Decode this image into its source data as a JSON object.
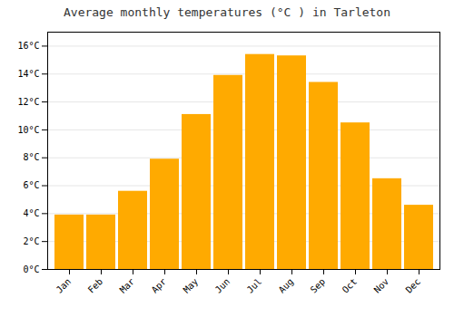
{
  "chart_data": {
    "type": "bar",
    "title": "Average monthly temperatures (°C ) in Tarleton",
    "categories": [
      "Jan",
      "Feb",
      "Mar",
      "Apr",
      "May",
      "Jun",
      "Jul",
      "Aug",
      "Sep",
      "Oct",
      "Nov",
      "Dec"
    ],
    "values": [
      3.9,
      3.9,
      5.6,
      7.9,
      11.1,
      13.9,
      15.4,
      15.3,
      13.4,
      10.5,
      6.5,
      4.6
    ],
    "color": "#FFAA00",
    "ylim": [
      0,
      17
    ],
    "yticks": [
      {
        "value": 0,
        "label": "0°C"
      },
      {
        "value": 2,
        "label": "2°C"
      },
      {
        "value": 4,
        "label": "4°C"
      },
      {
        "value": 6,
        "label": "6°C"
      },
      {
        "value": 8,
        "label": "8°C"
      },
      {
        "value": 10,
        "label": "10°C"
      },
      {
        "value": 12,
        "label": "12°C"
      },
      {
        "value": 14,
        "label": "14°C"
      },
      {
        "value": 16,
        "label": "16°C"
      }
    ],
    "grid": true
  }
}
